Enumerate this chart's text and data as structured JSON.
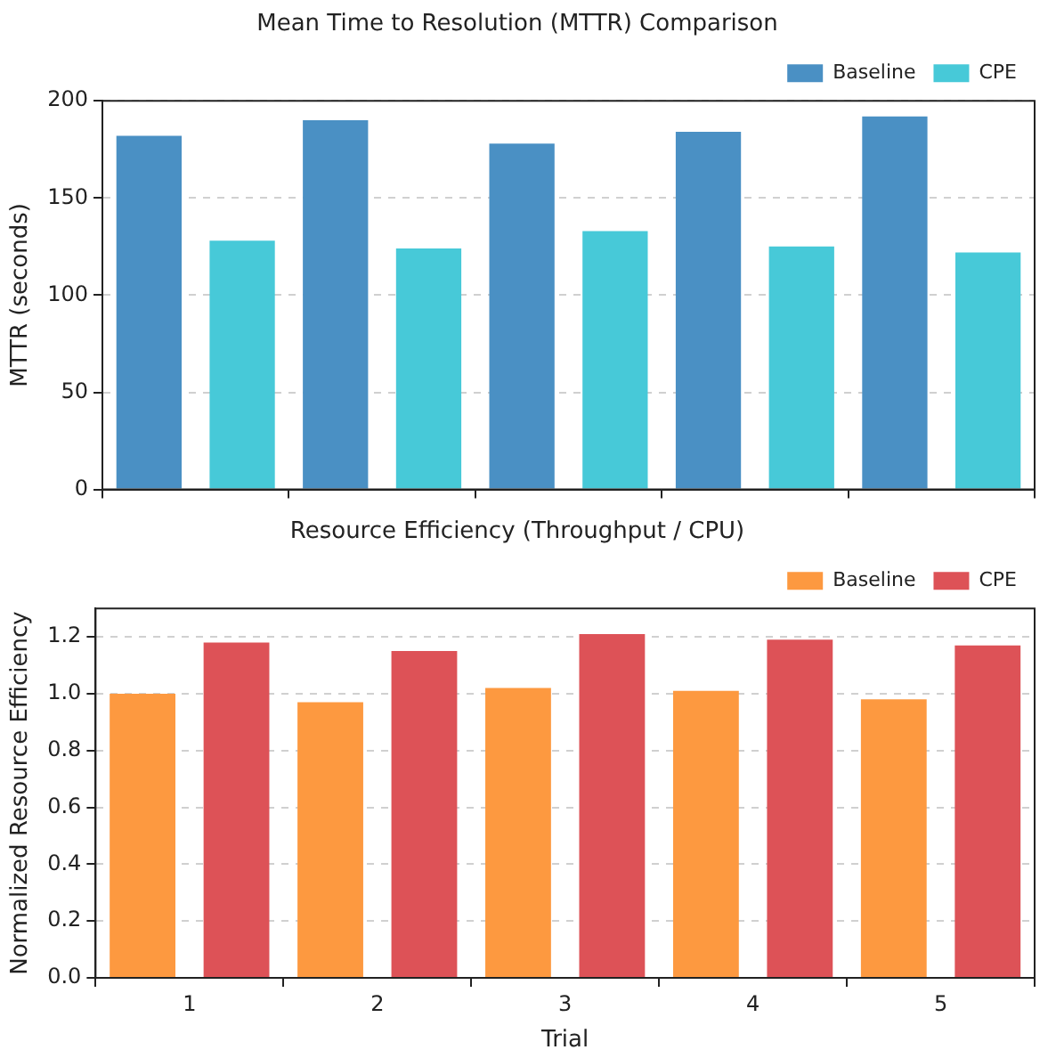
{
  "chart_data": [
    {
      "type": "bar",
      "title": "Mean Time to Resolution (MTTR) Comparison",
      "ylabel": "MTTR (seconds)",
      "categories": [
        "1",
        "2",
        "3",
        "4",
        "5"
      ],
      "series": [
        {
          "name": "Baseline",
          "color": "#4a90c4",
          "values": [
            182,
            190,
            178,
            184,
            192
          ]
        },
        {
          "name": "CPE",
          "color": "#47c9d8",
          "values": [
            128,
            124,
            133,
            125,
            122
          ]
        }
      ],
      "ylim": [
        0,
        200
      ],
      "yticks": [
        0,
        50,
        100,
        150,
        200
      ],
      "grid": "y",
      "legend": "top right",
      "tick_labels": "y"
    },
    {
      "type": "bar",
      "title": "Resource Efficiency (Throughput / CPU)",
      "xlabel": "Trial",
      "ylabel": "Normalized Resource Efficiency",
      "categories": [
        "1",
        "2",
        "3",
        "4",
        "5"
      ],
      "series": [
        {
          "name": "Baseline",
          "color": "#fd9940",
          "values": [
            1.0,
            0.97,
            1.02,
            1.01,
            0.98
          ]
        },
        {
          "name": "CPE",
          "color": "#dd5257",
          "values": [
            1.18,
            1.15,
            1.21,
            1.19,
            1.17
          ]
        }
      ],
      "ylim": [
        0,
        1.3
      ],
      "yticks": [
        {
          "value": 0,
          "label": "0.0"
        },
        {
          "value": 0.2,
          "label": "0.2"
        },
        {
          "value": 0.4,
          "label": "0.4"
        },
        {
          "value": 0.6,
          "label": "0.6"
        },
        {
          "value": 0.8,
          "label": "0.8"
        },
        {
          "value": 1,
          "label": "1.0"
        },
        {
          "value": 1.2,
          "label": "1.2"
        }
      ],
      "grid": "y",
      "legend": "top right"
    }
  ]
}
